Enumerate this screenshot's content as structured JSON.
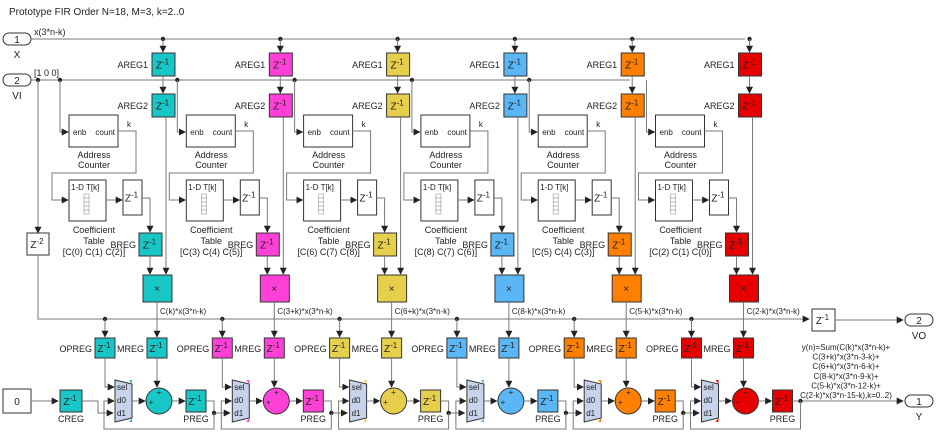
{
  "title": "Prototype FIR Order N=18, M=3, k=2..0",
  "inputs": [
    {
      "num": "1",
      "name": "X",
      "signal": "x(3*n-k)"
    },
    {
      "num": "2",
      "name": "VI",
      "signal": "[1 0 0]"
    }
  ],
  "outputs": [
    {
      "num": "2",
      "name": "VO"
    },
    {
      "num": "1",
      "name": "Y"
    }
  ],
  "labels": {
    "areg1": "AREG1",
    "areg2": "AREG2",
    "breg": "BREG",
    "opreg": "OPREG",
    "mreg": "MREG",
    "preg": "PREG",
    "creg": "CREG",
    "z": "Z",
    "exp1": "-1",
    "exp2": "-2",
    "enb": "enb",
    "count": "count",
    "k": "k",
    "addr1": "Address",
    "addr2": "Counter",
    "coef1": "Coefficient",
    "coef2": "Table",
    "lut": "1-D T[k]",
    "sel": "sel",
    "d0": "d0",
    "d1": "d1",
    "mult": "×",
    "plus": "+"
  },
  "const_value": "0",
  "stages": [
    {
      "color": "#19c6c6",
      "table": "[C(0) C(1) C(2)]",
      "product": "C(k)*x(3*n-k)"
    },
    {
      "color": "#ff40d6",
      "table": "[C(3) C(4) C(5)]",
      "product": "C(3+k)*x(3*n-k)"
    },
    {
      "color": "#e6cf4c",
      "table": "[C(6) C(7) C(8)]",
      "product": "C(6+k)*x(3*n-k)"
    },
    {
      "color": "#5ab6f5",
      "table": "[C(8) C(7) C(6)]",
      "product": "C(8-k)*x(3*n-k)"
    },
    {
      "color": "#ff8000",
      "table": "[C(5) C(4) C(3)]",
      "product": "C(5-k)*x(3*n-k)"
    },
    {
      "color": "#e60000",
      "table": "[C(2) C(1) C(0)]",
      "product": "C(2-k)*x(3*n-k)"
    }
  ],
  "formula": [
    "y(n)=Sum(C(k)*x(3*n-k)+",
    "C(3+k)*x(3*n-3-k)+",
    "C(6+k)*x(3*n-6-k)+",
    "C(8-k)*x(3*n-9-k)+",
    "C(5-k)*x(3*n-12-k)+",
    "C(2-k)*x(3*n-15-k),k=0..2)"
  ]
}
